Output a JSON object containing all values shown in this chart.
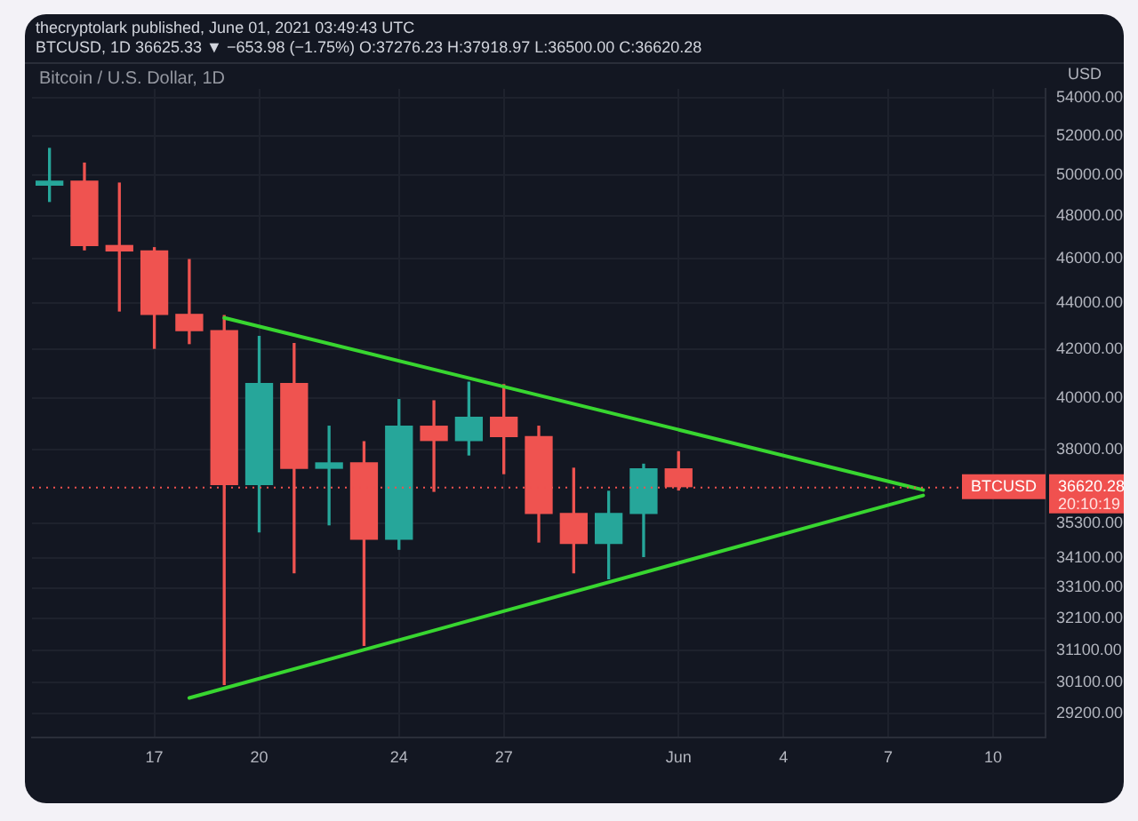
{
  "chart_data": {
    "type": "candlestick",
    "title": "thecryptolark published, June 01, 2021 03:49:43 UTC",
    "subtitle": "BTCUSD, 1D 36625.33 ▼ −653.98 (−1.75%) O:37276.23 H:37918.97 L:36500.00 C:36620.28",
    "ylabel": "USD",
    "x": [
      "2021-05-14",
      "2021-05-15",
      "2021-05-16",
      "2021-05-17",
      "2021-05-18",
      "2021-05-19",
      "2021-05-20",
      "2021-05-21",
      "2021-05-22",
      "2021-05-23",
      "2021-05-24",
      "2021-05-25",
      "2021-05-26",
      "2021-05-27",
      "2021-05-28",
      "2021-05-29",
      "2021-05-30",
      "2021-05-31",
      "2021-06-01"
    ],
    "ohlc": [
      [
        49500,
        51350,
        48700,
        49700
      ],
      [
        49700,
        50600,
        46400,
        46600
      ],
      [
        46600,
        49600,
        43650,
        46350
      ],
      [
        46350,
        46500,
        42050,
        43500
      ],
      [
        43500,
        45950,
        42250,
        42800
      ],
      [
        42800,
        43450,
        30050,
        36700
      ],
      [
        36700,
        42550,
        35000,
        40600
      ],
      [
        40600,
        42250,
        33600,
        37300
      ],
      [
        37300,
        38900,
        35250,
        37500
      ],
      [
        37500,
        38300,
        31250,
        34750
      ],
      [
        34750,
        39950,
        34400,
        38900
      ],
      [
        38900,
        39900,
        36450,
        38350
      ],
      [
        38350,
        40650,
        37800,
        39250
      ],
      [
        39250,
        40550,
        37100,
        38500
      ],
      [
        38500,
        38900,
        34650,
        35650
      ],
      [
        35650,
        37300,
        33600,
        34600
      ],
      [
        34600,
        36450,
        33400,
        35650
      ],
      [
        35650,
        37450,
        34150,
        37280
      ],
      [
        37276.23,
        37918.97,
        36500.0,
        36620.28
      ]
    ],
    "colors": [
      "#26a69a",
      "#ef5350",
      "#ef5350",
      "#ef5350",
      "#ef5350",
      "#ef5350",
      "#26a69a",
      "#ef5350",
      "#26a69a",
      "#ef5350",
      "#26a69a",
      "#ef5350",
      "#26a69a",
      "#ef5350",
      "#ef5350",
      "#ef5350",
      "#26a69a",
      "#26a69a",
      "#ef5350"
    ],
    "series": [
      {
        "type": "line",
        "x": [
          "2021-05-19",
          "2021-06-08"
        ],
        "values": [
          43350,
          36500
        ],
        "color": "#38d630"
      },
      {
        "type": "line",
        "x": [
          "2021-05-18",
          "2021-06-08"
        ],
        "values": [
          29650,
          36300
        ],
        "color": "#38d630"
      }
    ],
    "xlim": [
      "2021-05-13T12:00",
      "2021-06-11T12:00"
    ],
    "xticks": [
      {
        "value": "2021-05-17",
        "label": "17"
      },
      {
        "value": "2021-05-20",
        "label": "20"
      },
      {
        "value": "2021-05-24",
        "label": "24"
      },
      {
        "value": "2021-05-27",
        "label": "27"
      },
      {
        "value": "2021-06-01",
        "label": "Jun"
      },
      {
        "value": "2021-06-04",
        "label": "4"
      },
      {
        "value": "2021-06-07",
        "label": "7"
      },
      {
        "value": "2021-06-10",
        "label": "10"
      }
    ],
    "ylim": [
      28500,
      54500
    ],
    "yticks": [
      {
        "value": 29200,
        "label": "29200.00"
      },
      {
        "value": 30100,
        "label": "30100.00"
      },
      {
        "value": 31100,
        "label": "31100.00"
      },
      {
        "value": 32100,
        "label": "32100.00"
      },
      {
        "value": 33100,
        "label": "33100.00"
      },
      {
        "value": 34100,
        "label": "34100.00"
      },
      {
        "value": 35300,
        "label": "35300.00"
      },
      {
        "value": 38000,
        "label": "38000.00"
      },
      {
        "value": 40000,
        "label": "40000.00"
      },
      {
        "value": 42000,
        "label": "42000.00"
      },
      {
        "value": 44000,
        "label": "44000.00"
      },
      {
        "value": 46000,
        "label": "46000.00"
      },
      {
        "value": 48000,
        "label": "48000.00"
      },
      {
        "value": 50000,
        "label": "50000.00"
      },
      {
        "value": 52000,
        "label": "52000.00"
      },
      {
        "value": 54000,
        "label": "54000.00"
      }
    ],
    "log": true,
    "grid": true,
    "ref_lines": [
      {
        "axis": "y",
        "value": 36620.28,
        "label": "BTCUSD",
        "color": "#f0514f",
        "line_style": "dotted"
      }
    ],
    "annotations": [
      "Bitcoin / U.S. Dollar, 1D",
      "36620.28",
      "20:10:19"
    ]
  }
}
